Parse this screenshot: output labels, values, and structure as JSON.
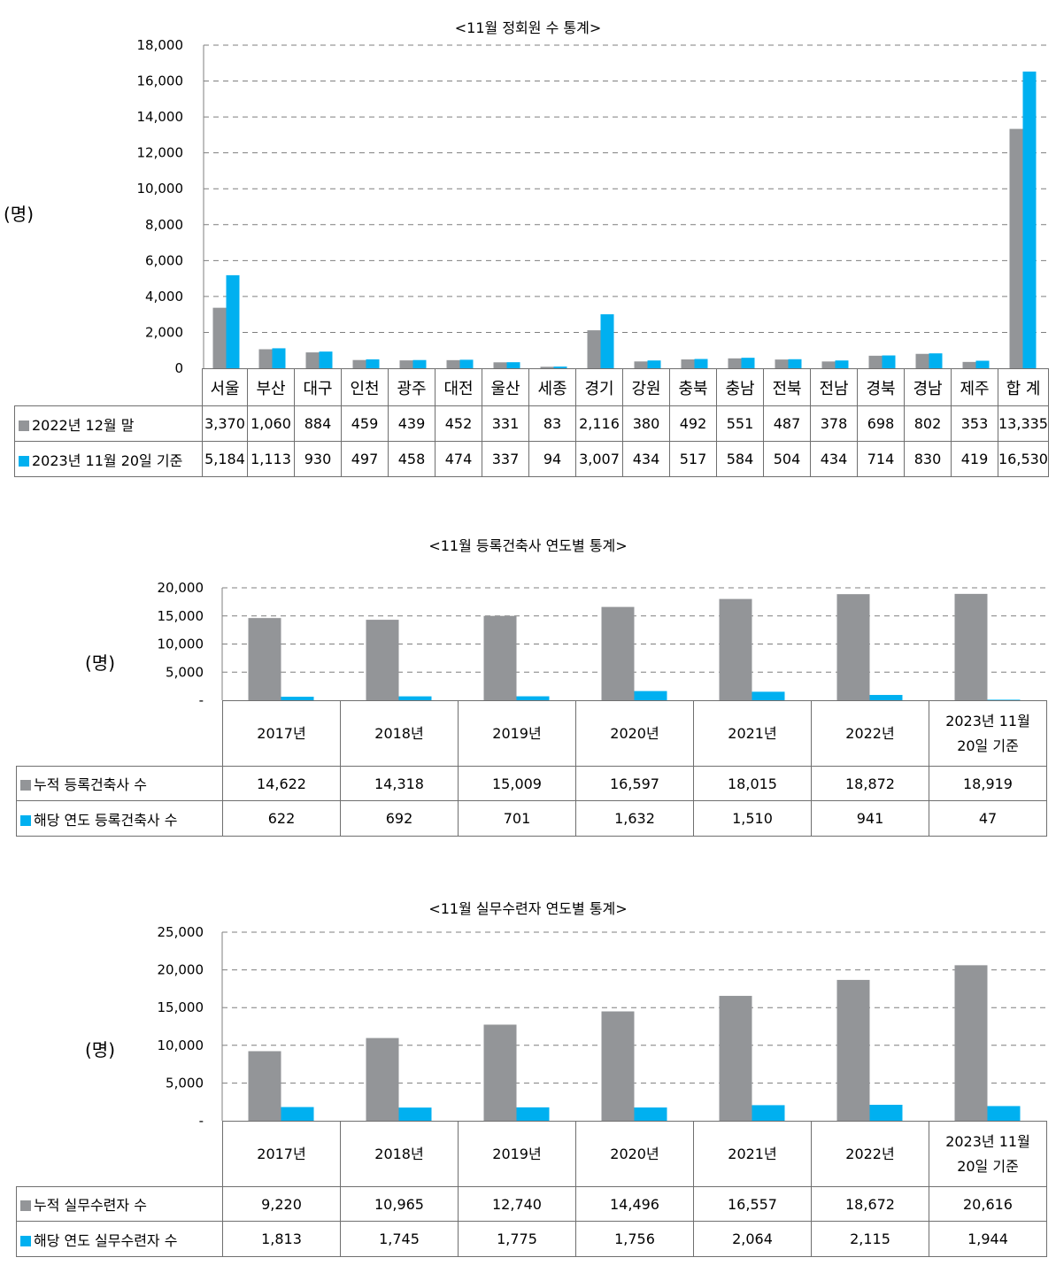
{
  "colors": {
    "series_a": "#939598",
    "series_b": "#00b0f0"
  },
  "chart_data": [
    {
      "type": "bar",
      "title": "<11월 정회원 수 통계>",
      "ylabel": "(명)",
      "ylim": [
        0,
        18000
      ],
      "yticks": [
        "0",
        "2,000",
        "4,000",
        "6,000",
        "8,000",
        "10,000",
        "12,000",
        "14,000",
        "16,000",
        "18,000"
      ],
      "grid": true,
      "categories": [
        "서울",
        "부산",
        "대구",
        "인천",
        "광주",
        "대전",
        "울산",
        "세종",
        "경기",
        "강원",
        "충북",
        "충남",
        "전북",
        "전남",
        "경북",
        "경남",
        "제주",
        "합 계"
      ],
      "series": [
        {
          "name": "2022년 12월 말",
          "values": [
            3370,
            1060,
            884,
            459,
            439,
            452,
            331,
            83,
            2116,
            380,
            492,
            551,
            487,
            378,
            698,
            802,
            353,
            13335
          ],
          "labels": [
            "3,370",
            "1,060",
            "884",
            "459",
            "439",
            "452",
            "331",
            "83",
            "2,116",
            "380",
            "492",
            "551",
            "487",
            "378",
            "698",
            "802",
            "353",
            "13,335"
          ]
        },
        {
          "name": "2023년 11월 20일 기준",
          "values": [
            5184,
            1113,
            930,
            497,
            458,
            474,
            337,
            94,
            3007,
            434,
            517,
            584,
            504,
            434,
            714,
            830,
            419,
            16530
          ],
          "labels": [
            "5,184",
            "1,113",
            "930",
            "497",
            "458",
            "474",
            "337",
            "94",
            "3,007",
            "434",
            "517",
            "584",
            "504",
            "434",
            "714",
            "830",
            "419",
            "16,530"
          ]
        }
      ]
    },
    {
      "type": "bar",
      "title": "<11월 등록건축사 연도별 통계>",
      "ylabel": "(명)",
      "ylim": [
        0,
        20000
      ],
      "yticks": [
        "-",
        "5,000",
        "10,000",
        "15,000",
        "20,000"
      ],
      "grid": true,
      "categories": [
        "2017년",
        "2018년",
        "2019년",
        "2020년",
        "2021년",
        "2022년",
        "2023년 11월 20일 기준"
      ],
      "category_lines": [
        [
          "2017년"
        ],
        [
          "2018년"
        ],
        [
          "2019년"
        ],
        [
          "2020년"
        ],
        [
          "2021년"
        ],
        [
          "2022년"
        ],
        [
          "2023년 11월",
          "20일 기준"
        ]
      ],
      "series": [
        {
          "name": "누적 등록건축사 수",
          "values": [
            14622,
            14318,
            15009,
            16597,
            18015,
            18872,
            18919
          ],
          "labels": [
            "14,622",
            "14,318",
            "15,009",
            "16,597",
            "18,015",
            "18,872",
            "18,919"
          ]
        },
        {
          "name": "해당 연도 등록건축사 수",
          "values": [
            622,
            692,
            701,
            1632,
            1510,
            941,
            47
          ],
          "labels": [
            "622",
            "692",
            "701",
            "1,632",
            "1,510",
            "941",
            "47"
          ]
        }
      ]
    },
    {
      "type": "bar",
      "title": "<11월 실무수련자 연도별 통계>",
      "ylabel": "(명)",
      "ylim": [
        0,
        25000
      ],
      "yticks": [
        "-",
        "5,000",
        "10,000",
        "15,000",
        "20,000",
        "25,000"
      ],
      "grid": true,
      "categories": [
        "2017년",
        "2018년",
        "2019년",
        "2020년",
        "2021년",
        "2022년",
        "2023년 11월 20일 기준"
      ],
      "category_lines": [
        [
          "2017년"
        ],
        [
          "2018년"
        ],
        [
          "2019년"
        ],
        [
          "2020년"
        ],
        [
          "2021년"
        ],
        [
          "2022년"
        ],
        [
          "2023년 11월",
          "20일 기준"
        ]
      ],
      "series": [
        {
          "name": "누적 실무수련자 수",
          "values": [
            9220,
            10965,
            12740,
            14496,
            16557,
            18672,
            20616
          ],
          "labels": [
            "9,220",
            "10,965",
            "12,740",
            "14,496",
            "16,557",
            "18,672",
            "20,616"
          ]
        },
        {
          "name": "해당 연도 실무수련자 수",
          "values": [
            1813,
            1745,
            1775,
            1756,
            2064,
            2115,
            1944
          ],
          "labels": [
            "1,813",
            "1,745",
            "1,775",
            "1,756",
            "2,064",
            "2,115",
            "1,944"
          ]
        }
      ]
    }
  ]
}
